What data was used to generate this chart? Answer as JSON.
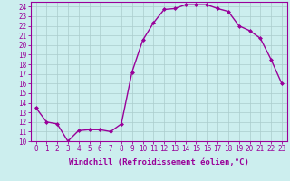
{
  "x": [
    0,
    1,
    2,
    3,
    4,
    5,
    6,
    7,
    8,
    9,
    10,
    11,
    12,
    13,
    14,
    15,
    16,
    17,
    18,
    19,
    20,
    21,
    22,
    23
  ],
  "y": [
    13.5,
    12.0,
    11.8,
    10.0,
    11.1,
    11.2,
    11.2,
    11.0,
    11.8,
    17.2,
    20.5,
    22.3,
    23.7,
    23.8,
    24.2,
    24.2,
    24.2,
    23.8,
    23.5,
    22.0,
    21.5,
    20.7,
    18.5,
    16.0
  ],
  "line_color": "#990099",
  "marker": "D",
  "marker_size": 2,
  "bg_color": "#cceeee",
  "grid_color": "#aacccc",
  "xlabel": "Windchill (Refroidissement éolien,°C)",
  "xlim": [
    -0.5,
    23.5
  ],
  "ylim": [
    10,
    24.5
  ],
  "yticks": [
    10,
    11,
    12,
    13,
    14,
    15,
    16,
    17,
    18,
    19,
    20,
    21,
    22,
    23,
    24
  ],
  "xticks": [
    0,
    1,
    2,
    3,
    4,
    5,
    6,
    7,
    8,
    9,
    10,
    11,
    12,
    13,
    14,
    15,
    16,
    17,
    18,
    19,
    20,
    21,
    22,
    23
  ],
  "line_width": 1.0,
  "xlabel_fontsize": 6.5,
  "tick_fontsize": 5.5,
  "xlabel_color": "#990099",
  "tick_color": "#990099",
  "spine_color": "#990099"
}
